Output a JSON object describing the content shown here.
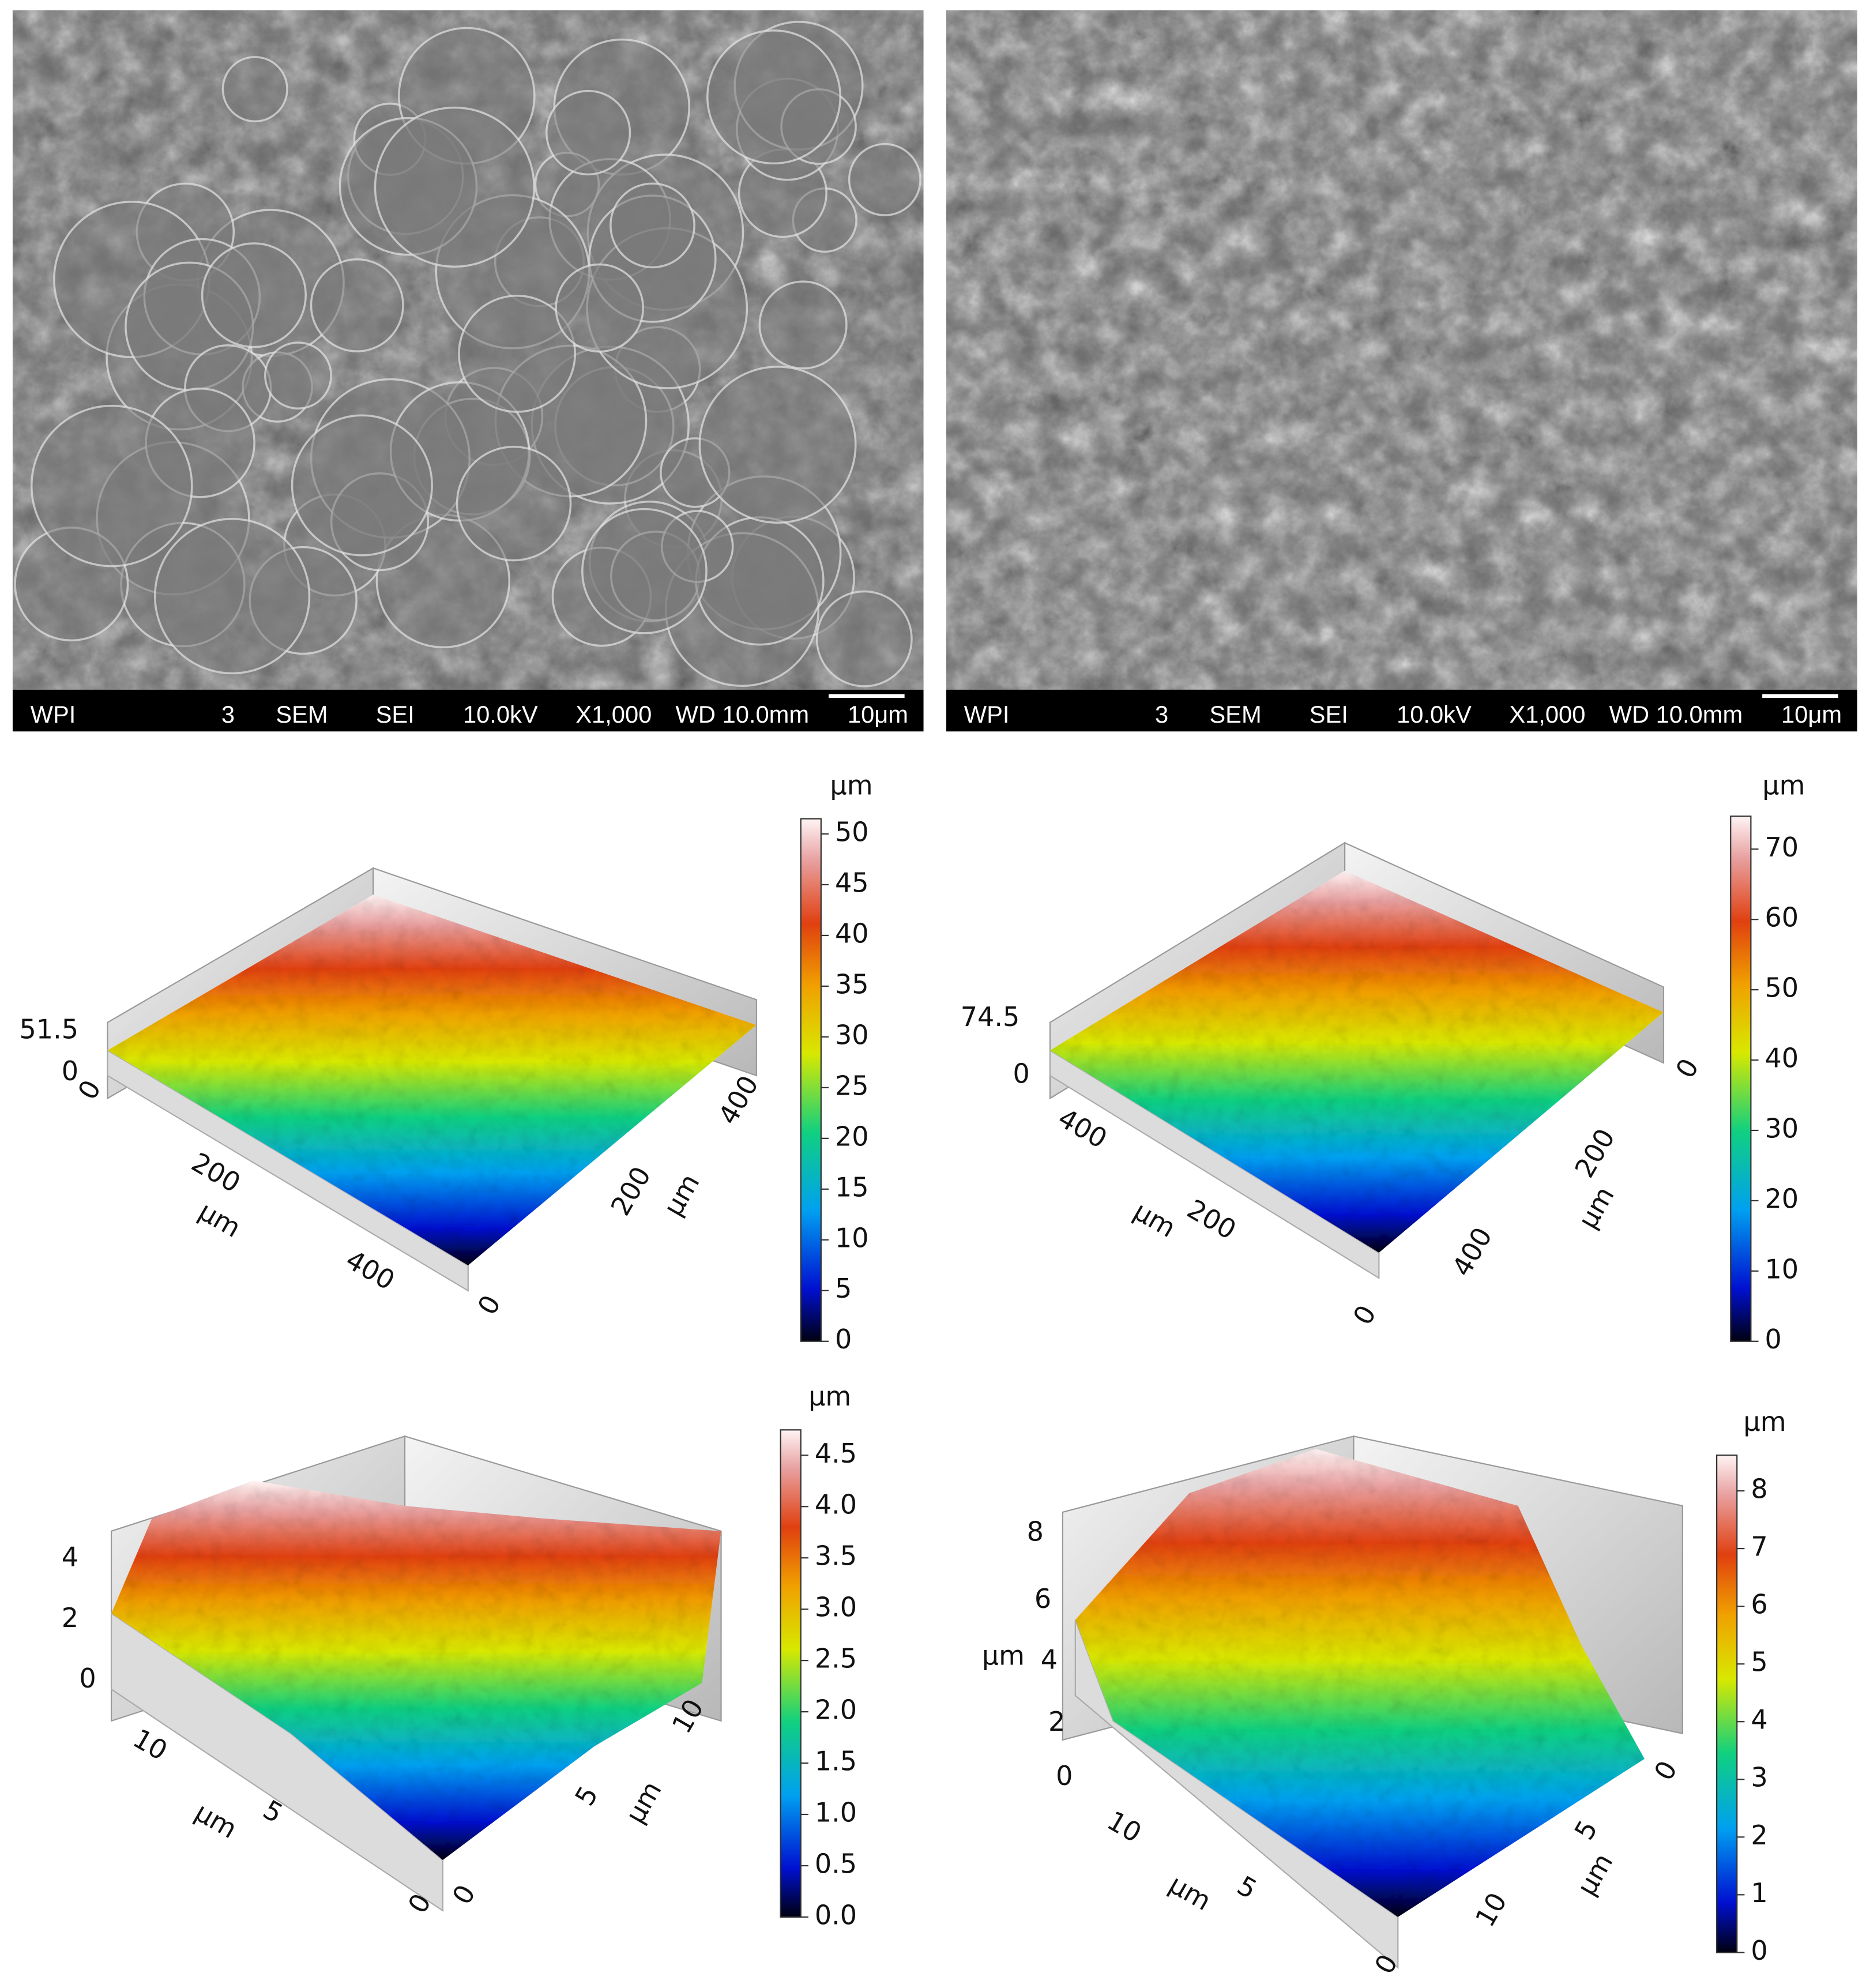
{
  "sem": [
    {
      "info_bar": [
        "WPI",
        "3",
        "SEM",
        "SEI",
        "10.0kV",
        "X1,000",
        "WD 10.0mm",
        "10μm"
      ]
    },
    {
      "info_bar": [
        "WPI",
        "3",
        "SEM",
        "SEI",
        "10.0kV",
        "X1,000",
        "WD 10.0mm",
        "10μm"
      ]
    }
  ],
  "profiles": [
    {
      "colorbar": {
        "unit": "µm",
        "ticks": [
          0,
          5,
          10,
          15,
          20,
          25,
          30,
          35,
          40,
          45,
          50
        ]
      },
      "axis_labels": [
        "51.5",
        "0",
        "0",
        "200",
        "µm",
        "400",
        "0",
        "200",
        "µm",
        "400"
      ]
    },
    {
      "colorbar": {
        "unit": "µm",
        "ticks": [
          0,
          10,
          20,
          30,
          40,
          50,
          60,
          70
        ]
      },
      "axis_labels": [
        "74.5",
        "0",
        "400",
        "µm",
        "200",
        "0",
        "400",
        "µm",
        "200",
        "0"
      ]
    },
    {
      "colorbar": {
        "unit": "µm",
        "ticks": [
          {
            "value": 0,
            "label": "0.0"
          },
          0.5,
          {
            "value": 1,
            "label": "1.0"
          },
          1.5,
          {
            "value": 2,
            "label": "2.0"
          },
          2.5,
          {
            "value": 3,
            "label": "3.0"
          },
          3.5,
          {
            "value": 4,
            "label": "4.0"
          },
          4.5
        ]
      },
      "axis_labels": [
        "4",
        "2",
        "0",
        "10",
        "µm",
        "5",
        "0",
        "0",
        "5",
        "µm",
        "10"
      ]
    },
    {
      "colorbar": {
        "unit": "µm",
        "ticks": [
          0,
          1,
          2,
          3,
          4,
          5,
          6,
          7,
          8
        ]
      },
      "axis_labels": [
        "8",
        "6",
        "µm",
        "4",
        "2",
        "0",
        "10",
        "µm",
        "5",
        "0",
        "10",
        "µm",
        "5",
        "0"
      ]
    }
  ]
}
